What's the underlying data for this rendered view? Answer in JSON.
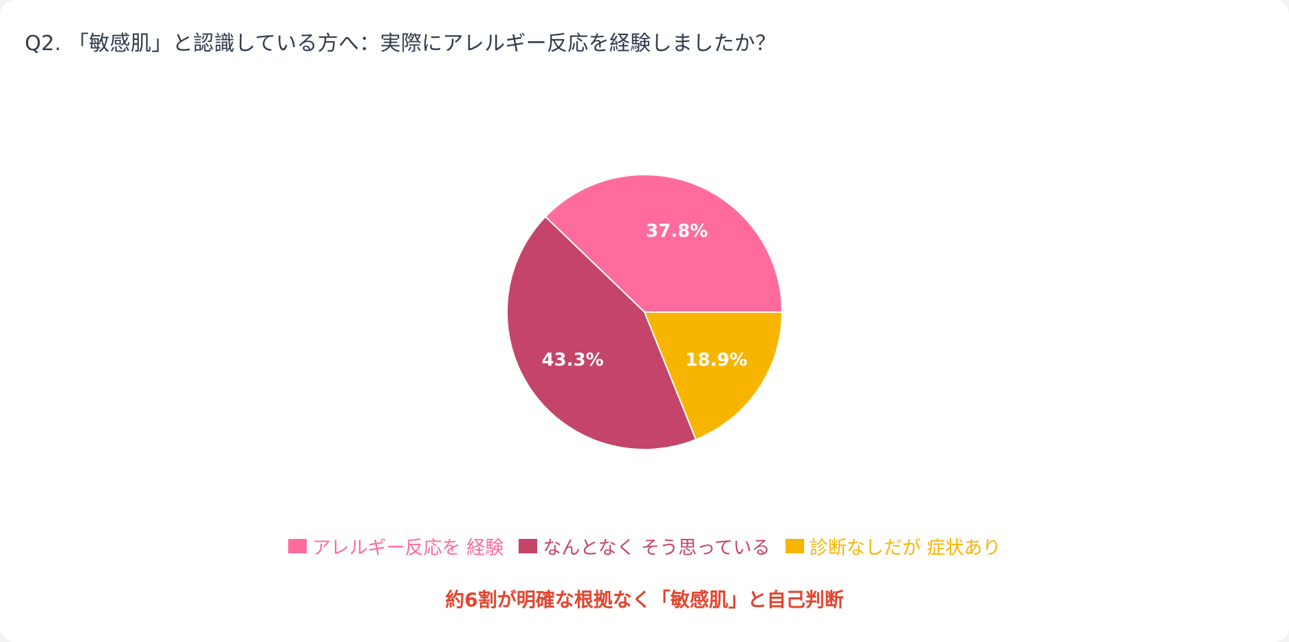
{
  "title": "Q2. 「敏感肌」と認識している方へ：実際にアレルギー反応を経験しましたか？",
  "caption": "約6割が明確な根拠なく「敏感肌」と自己判断",
  "caption_color": "#e2452f",
  "chart_data": {
    "type": "pie",
    "title": "Q2. 「敏感肌」と認識している方へ：実際にアレルギー反応を経験しましたか？",
    "categories": [
      "アレルギー反応を 経験",
      "なんとなく そう思っている",
      "診断なしだが 症状あり"
    ],
    "values": [
      37.8,
      43.3,
      18.9
    ],
    "labels": [
      "37.8%",
      "43.3%",
      "18.9%"
    ],
    "colors": [
      "#ff6b9d",
      "#c44569",
      "#f8b500"
    ],
    "legend_position": "bottom",
    "start_angle": "3 o'clock, counter-clockwise"
  }
}
